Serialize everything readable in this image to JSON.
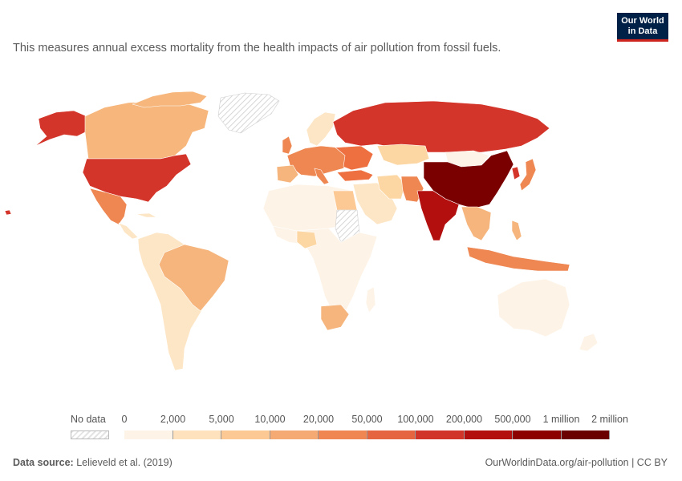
{
  "subtitle": "This measures annual excess mortality from the health impacts of air pollution from fossil fuels.",
  "logo": {
    "line1": "Our World",
    "line2": "in Data"
  },
  "legend": {
    "no_data_label": "No data",
    "ticks": [
      "0",
      "2,000",
      "5,000",
      "10,000",
      "20,000",
      "50,000",
      "100,000",
      "200,000",
      "500,000",
      "1 million",
      "2 million"
    ],
    "bin_colors": [
      "#fef3e7",
      "#fde2bd",
      "#fcc994",
      "#f5aa74",
      "#f08752",
      "#e4653f",
      "#d1352a",
      "#b30f0f",
      "#8c0000",
      "#6a0000"
    ]
  },
  "footer": {
    "source_label": "Data source:",
    "source_value": "Lelieveld et al. (2019)",
    "right": "OurWorldinData.org/air-pollution | CC BY"
  },
  "map_colors": {
    "na_usa": "#d4352a",
    "canada": "#f6b67c",
    "alaska": "#d4352a",
    "greenland_nodata": "#eeeeee",
    "mexico": "#ee8752",
    "central_am": "#fde6c6",
    "south_am": "#fde6c6",
    "brazil": "#f5b57d",
    "europe": "#ee8752",
    "scandinavia": "#fde6c6",
    "russia": "#d4352a",
    "kazakhstan": "#fcd7a4",
    "middle_east": "#fde6c6",
    "north_africa": "#fef3e7",
    "africa": "#fef3e7",
    "south_africa": "#f5b57d",
    "nigeria": "#fcd7a4",
    "egypt": "#fcc994",
    "turkey": "#ee7040",
    "iran": "#fcd7a4",
    "pakistan": "#ee8752",
    "india": "#b30f0f",
    "china": "#7a0000",
    "mongolia": "#fef3e7",
    "se_asia": "#f5b57d",
    "japan": "#ee8752",
    "indonesia": "#ee8752",
    "australia": "#fef3e7",
    "korea": "#d4352a"
  }
}
